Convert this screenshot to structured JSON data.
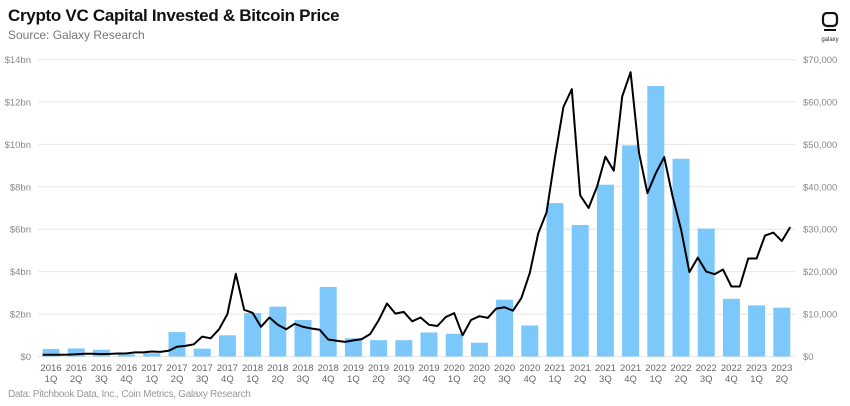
{
  "title": "Crypto VC Capital Invested & Bitcoin Price",
  "subtitle": "Source: Galaxy Research",
  "note": "Data: Pitchbook Data, Inc., Coin Metrics, Galaxy Research",
  "logo_text": "galaxy",
  "chart_data": {
    "type": "bar+line",
    "grid": true,
    "categories": [
      "2016 1Q",
      "2016 2Q",
      "2016 3Q",
      "2016 4Q",
      "2017 1Q",
      "2017 2Q",
      "2017 3Q",
      "2017 4Q",
      "2018 1Q",
      "2018 2Q",
      "2018 3Q",
      "2018 4Q",
      "2019 1Q",
      "2019 2Q",
      "2019 3Q",
      "2019 4Q",
      "2020 1Q",
      "2020 2Q",
      "2020 3Q",
      "2020 4Q",
      "2021 1Q",
      "2021 2Q",
      "2021 3Q",
      "2021 4Q",
      "2022 1Q",
      "2022 2Q",
      "2022 3Q",
      "2022 4Q",
      "2023 1Q",
      "2023 2Q"
    ],
    "bars": {
      "unit": "$bn",
      "color": "#7dc8fb",
      "values": [
        0.35,
        0.38,
        0.32,
        0.1,
        0.15,
        1.15,
        0.37,
        1.0,
        2.05,
        2.35,
        1.72,
        3.28,
        0.86,
        0.77,
        0.77,
        1.13,
        1.07,
        0.65,
        2.68,
        1.46,
        7.23,
        6.2,
        8.1,
        9.95,
        12.75,
        9.32,
        6.03,
        2.72,
        2.41,
        2.3
      ]
    },
    "line": {
      "unit": "USD",
      "color": "#000000",
      "dates": [
        "2016-01",
        "2016-02",
        "2016-03",
        "2016-04",
        "2016-05",
        "2016-06",
        "2016-07",
        "2016-08",
        "2016-09",
        "2016-10",
        "2016-11",
        "2016-12",
        "2017-01",
        "2017-02",
        "2017-03",
        "2017-04",
        "2017-05",
        "2017-06",
        "2017-07",
        "2017-08",
        "2017-09",
        "2017-10",
        "2017-11",
        "2017-12",
        "2018-01",
        "2018-02",
        "2018-03",
        "2018-04",
        "2018-05",
        "2018-06",
        "2018-07",
        "2018-08",
        "2018-09",
        "2018-10",
        "2018-11",
        "2018-12",
        "2019-01",
        "2019-02",
        "2019-03",
        "2019-04",
        "2019-05",
        "2019-06",
        "2019-07",
        "2019-08",
        "2019-09",
        "2019-10",
        "2019-11",
        "2019-12",
        "2020-01",
        "2020-02",
        "2020-03",
        "2020-04",
        "2020-05",
        "2020-06",
        "2020-07",
        "2020-08",
        "2020-09",
        "2020-10",
        "2020-11",
        "2020-12",
        "2021-01",
        "2021-02",
        "2021-03",
        "2021-04",
        "2021-05",
        "2021-06",
        "2021-07",
        "2021-08",
        "2021-09",
        "2021-10",
        "2021-11",
        "2021-12",
        "2022-01",
        "2022-02",
        "2022-03",
        "2022-04",
        "2022-05",
        "2022-06",
        "2022-07",
        "2022-08",
        "2022-09",
        "2022-10",
        "2022-11",
        "2022-12",
        "2023-01",
        "2023-02",
        "2023-03",
        "2023-04",
        "2023-05",
        "2023-06"
      ],
      "values": [
        430,
        400,
        415,
        450,
        530,
        670,
        650,
        575,
        610,
        700,
        740,
        960,
        970,
        1190,
        1080,
        1350,
        2300,
        2500,
        2870,
        4700,
        4300,
        6400,
        10000,
        19500,
        11000,
        10300,
        7000,
        9200,
        7500,
        6400,
        7700,
        7000,
        6600,
        6300,
        4000,
        3700,
        3450,
        3800,
        4100,
        5300,
        8500,
        12500,
        10100,
        10500,
        8300,
        9200,
        7500,
        7200,
        9300,
        10200,
        5000,
        8600,
        9500,
        9100,
        11300,
        11600,
        10800,
        13800,
        19700,
        29000,
        34000,
        47000,
        58800,
        63000,
        38000,
        35000,
        40000,
        47100,
        43800,
        61300,
        67000,
        48000,
        38500,
        43200,
        47000,
        37700,
        30000,
        19900,
        23300,
        20000,
        19400,
        20500,
        16500,
        16500,
        23100,
        23100,
        28500,
        29200,
        27200,
        30500
      ]
    },
    "y_left": {
      "ticks": [
        "$0",
        "$2bn",
        "$4bn",
        "$6bn",
        "$8bn",
        "$10bn",
        "$12bn",
        "$14bn"
      ],
      "range": [
        0,
        14
      ]
    },
    "y_right": {
      "ticks": [
        "$0",
        "$10,000",
        "$20,000",
        "$30,000",
        "$40,000",
        "$50,000",
        "$60,000",
        "$70,000"
      ],
      "range": [
        0,
        70000
      ]
    }
  }
}
